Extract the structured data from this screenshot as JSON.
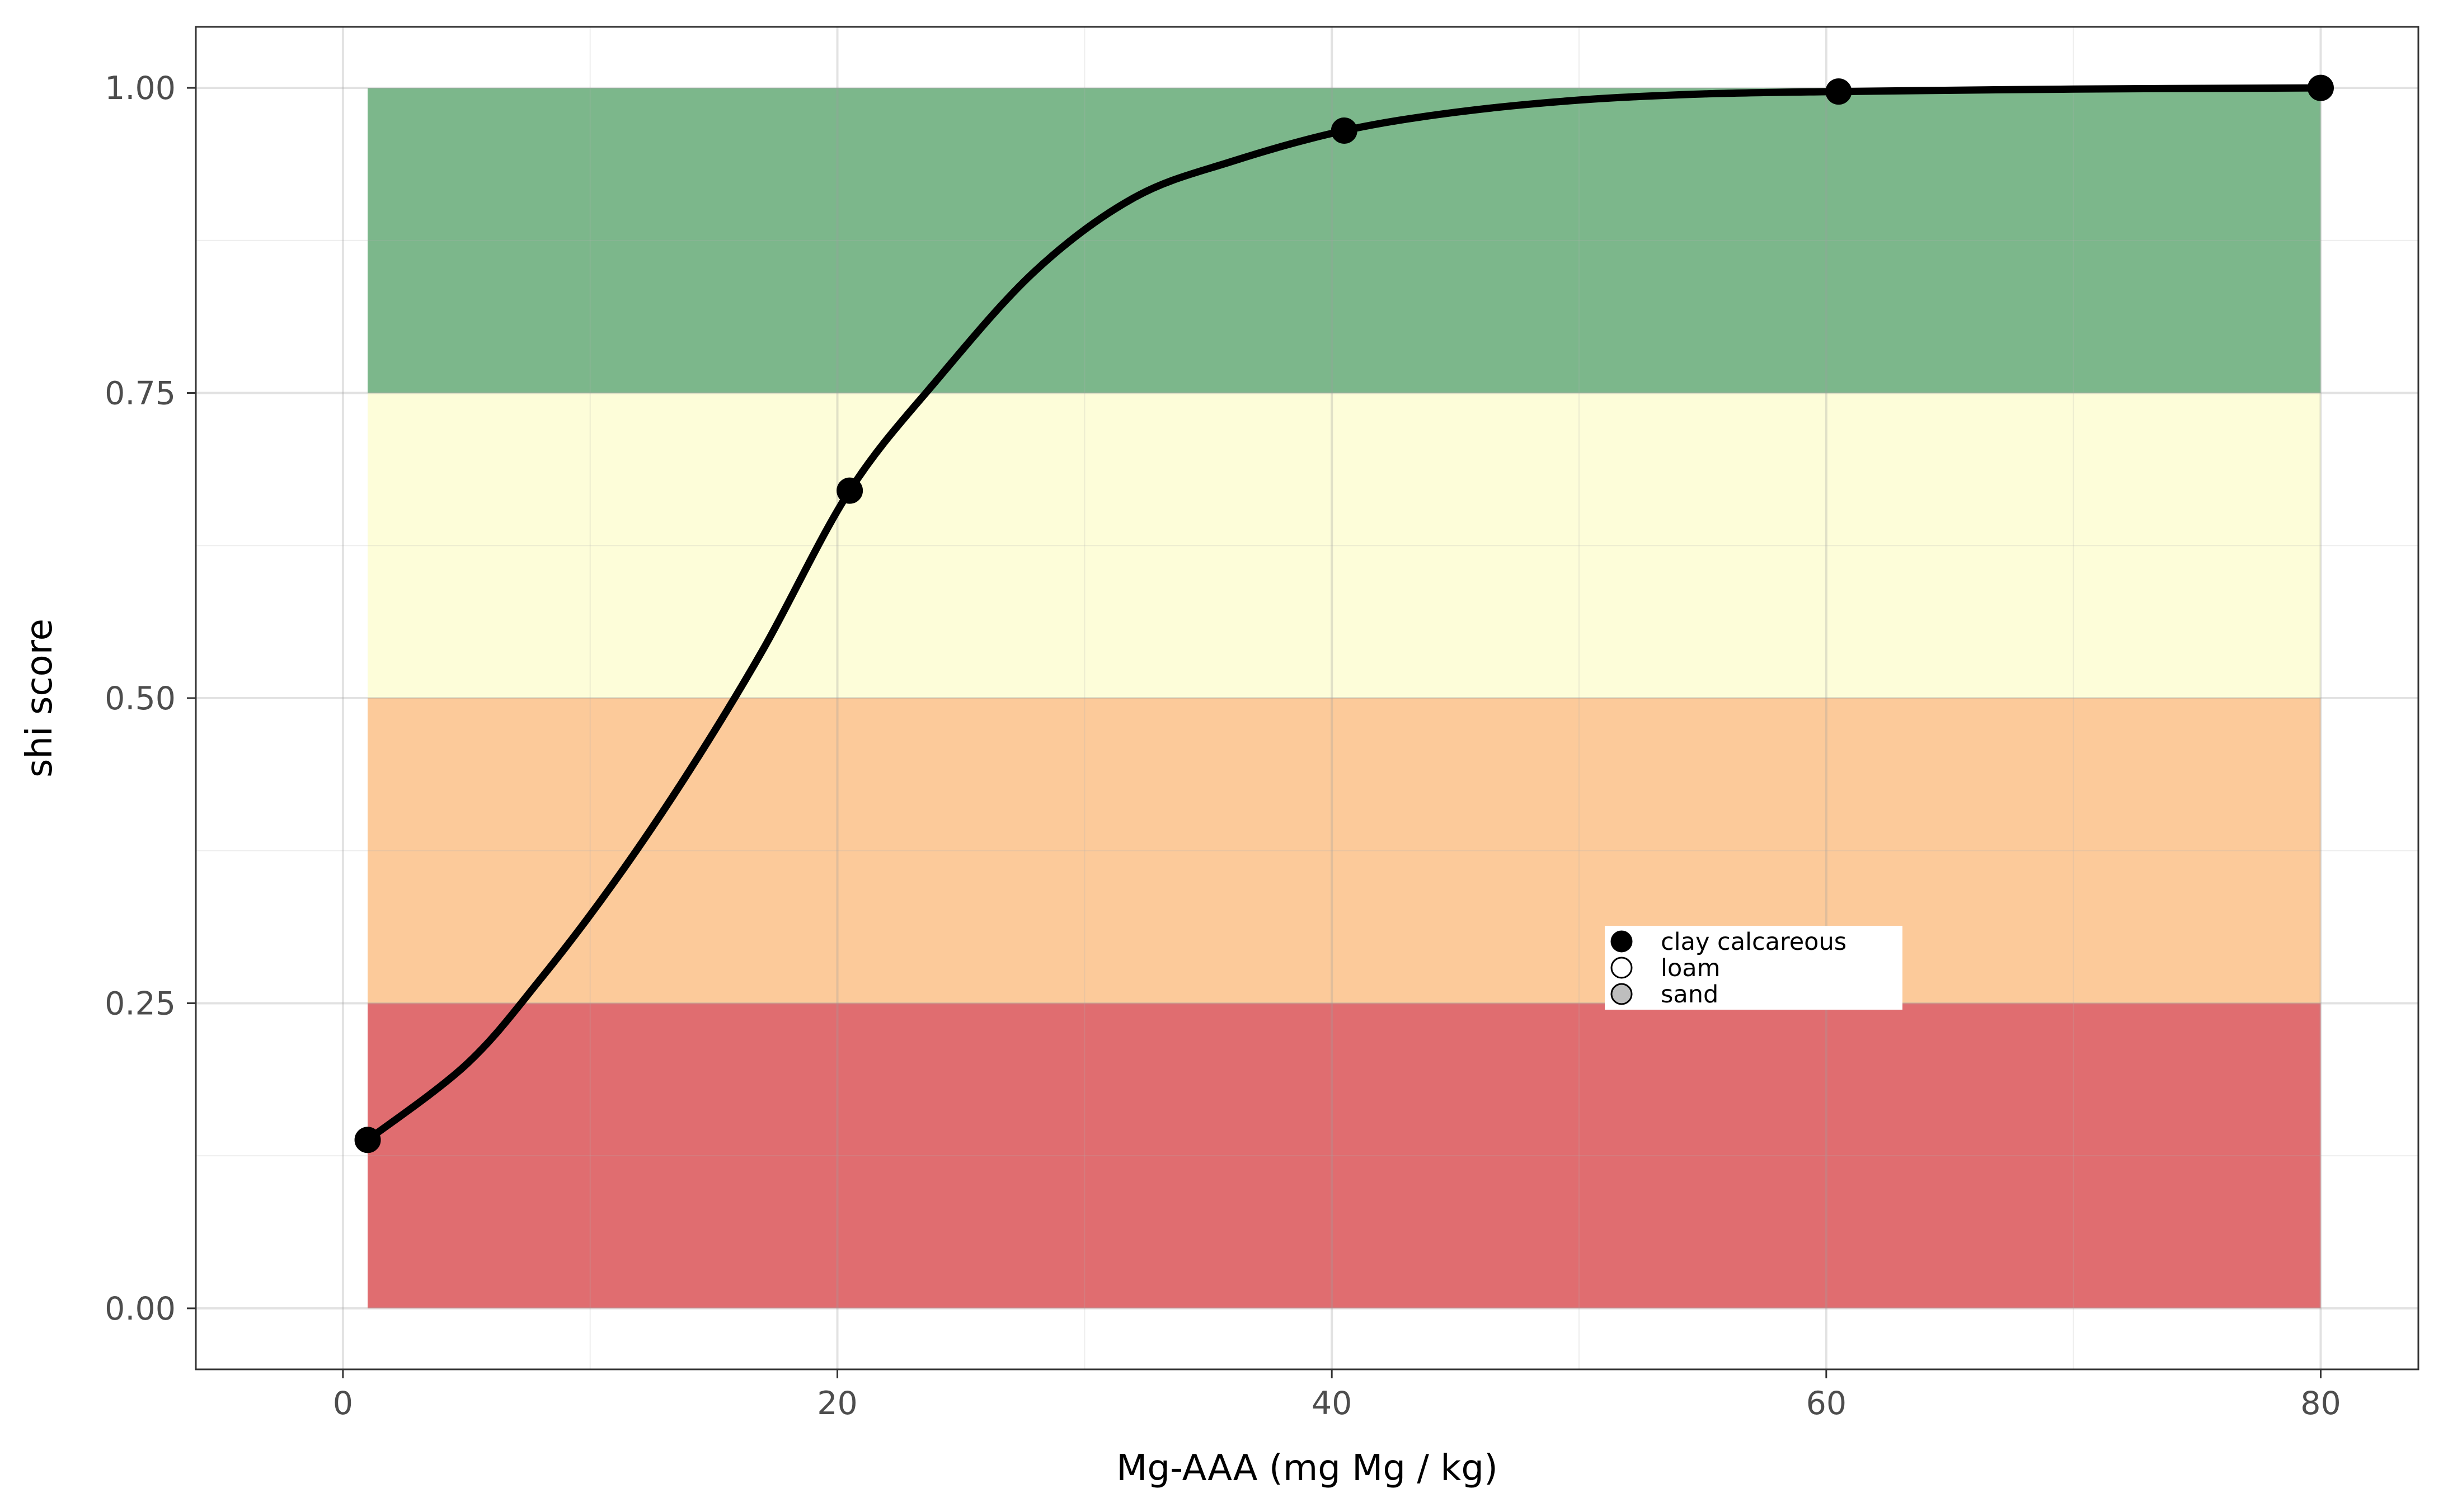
{
  "chart_data": {
    "type": "line",
    "xlabel": "Mg-AAA (mg Mg / kg)",
    "ylabel": "shi score",
    "xlim": [
      -5.95,
      83.95
    ],
    "ylim": [
      -0.05,
      1.05
    ],
    "x_ticks": [
      0,
      20,
      40,
      60,
      80
    ],
    "x_tick_labels": [
      "0",
      "20",
      "40",
      "60",
      "80"
    ],
    "y_ticks": [
      0,
      0.25,
      0.5,
      0.75,
      1.0
    ],
    "y_tick_labels": [
      "0.00",
      "0.25",
      "0.50",
      "0.75",
      "1.00"
    ],
    "grid": true,
    "bands": [
      {
        "ymin": 0.0,
        "ymax": 0.25,
        "color": "#e06d70"
      },
      {
        "ymin": 0.25,
        "ymax": 0.5,
        "color": "#fcca9a"
      },
      {
        "ymin": 0.5,
        "ymax": 0.75,
        "color": "#fdfdd9"
      },
      {
        "ymin": 0.75,
        "ymax": 1.0,
        "color": "#7cb78b"
      }
    ],
    "band_x_range": [
      1,
      80
    ],
    "curve": {
      "color": "#000000",
      "x": [
        1,
        5,
        8,
        11,
        14,
        17,
        20.5,
        24,
        28,
        32,
        36,
        40.5,
        45,
        50,
        55,
        60.5,
        70,
        80
      ],
      "y": [
        0.138,
        0.2,
        0.27,
        0.35,
        0.44,
        0.54,
        0.67,
        0.76,
        0.85,
        0.91,
        0.94,
        0.965,
        0.98,
        0.99,
        0.995,
        0.997,
        0.999,
        1.0
      ]
    },
    "points": [
      {
        "x": 1,
        "y": 0.138,
        "series": "clay calcareous"
      },
      {
        "x": 20.5,
        "y": 0.67,
        "series": "clay calcareous"
      },
      {
        "x": 40.5,
        "y": 0.965,
        "series": "clay calcareous"
      },
      {
        "x": 60.5,
        "y": 0.997,
        "series": "clay calcareous"
      },
      {
        "x": 80,
        "y": 1.0,
        "series": "clay calcareous"
      }
    ],
    "legend": {
      "position": "inside, center-right",
      "entries": [
        {
          "label": "clay calcareous",
          "fill": "#000000"
        },
        {
          "label": "loam",
          "fill": "#ffffff"
        },
        {
          "label": "sand",
          "fill": "#bebebe"
        }
      ]
    }
  }
}
